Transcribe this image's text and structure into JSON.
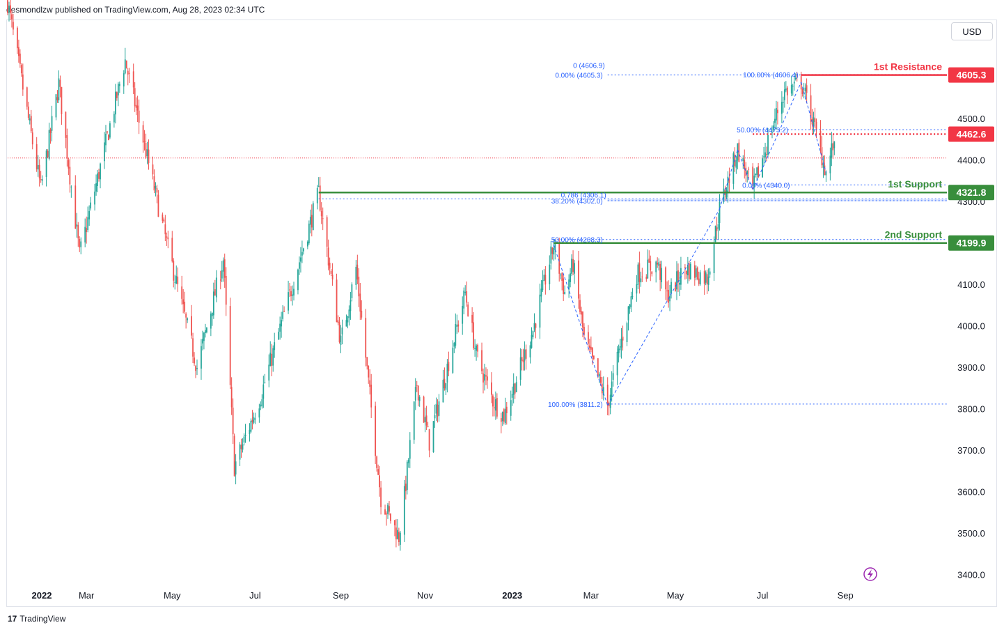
{
  "header": {
    "text": "desmondlzw published on TradingView.com, Aug 28, 2023 02:34 UTC"
  },
  "currency": "USD",
  "footer": {
    "brand": "TradingView"
  },
  "colors": {
    "bull": "#26a69a",
    "bear": "#ef5350",
    "support": "#388e3c",
    "resistance": "#f23645",
    "fib": "#2962ff"
  },
  "chart_data": {
    "type": "candlestick",
    "y_ticks": [
      3400,
      3500,
      3600,
      3700,
      3800,
      3900,
      4000,
      4100,
      4200,
      4300,
      4400,
      4500
    ],
    "y_tick_labels": [
      "3400.0",
      "3500.0",
      "3600.0",
      "3700.0",
      "3800.0",
      "3900.0",
      "4000.0",
      "4100.0",
      "4200.0",
      "4300.0",
      "4400.0",
      "4500.0"
    ],
    "x_tick_labels": [
      "2022",
      "Mar",
      "May",
      "Jul",
      "Sep",
      "Nov",
      "2023",
      "Mar",
      "May",
      "Jul",
      "Sep"
    ],
    "bold_x_ticks": [
      "2022",
      "2023"
    ],
    "price_path": [
      [
        "2022-01-03",
        4780
      ],
      [
        "2022-01-27",
        4330
      ],
      [
        "2022-02-09",
        4585
      ],
      [
        "2022-02-24",
        4170
      ],
      [
        "2022-03-29",
        4640
      ],
      [
        "2022-04-28",
        4200
      ],
      [
        "2022-05-20",
        3900
      ],
      [
        "2022-06-08",
        4160
      ],
      [
        "2022-06-16",
        3660
      ],
      [
        "2022-07-05",
        3830
      ],
      [
        "2022-08-16",
        4320
      ],
      [
        "2022-09-01",
        3960
      ],
      [
        "2022-09-12",
        4140
      ],
      [
        "2022-09-30",
        3585
      ],
      [
        "2022-10-13",
        3491
      ],
      [
        "2022-10-17",
        3590
      ],
      [
        "2022-10-26",
        3860
      ],
      [
        "2022-11-04",
        3720
      ],
      [
        "2022-11-30",
        4080
      ],
      [
        "2022-12-08",
        3930
      ],
      [
        "2022-12-20",
        3820
      ],
      [
        "2022-12-28",
        3783
      ],
      [
        "2023-01-18",
        3990
      ],
      [
        "2023-02-02",
        4195
      ],
      [
        "2023-02-10",
        4080
      ],
      [
        "2023-02-16",
        4150
      ],
      [
        "2023-02-24",
        3970
      ],
      [
        "2023-03-13",
        3808
      ],
      [
        "2023-03-22",
        3950
      ],
      [
        "2023-04-03",
        4125
      ],
      [
        "2023-04-18",
        4150
      ],
      [
        "2023-04-25",
        4070
      ],
      [
        "2023-05-08",
        4140
      ],
      [
        "2023-05-24",
        4115
      ],
      [
        "2023-06-02",
        4282
      ],
      [
        "2023-06-15",
        4425
      ],
      [
        "2023-06-26",
        4328
      ],
      [
        "2023-07-13",
        4510
      ],
      [
        "2023-07-19",
        4565
      ],
      [
        "2023-07-31",
        4588
      ],
      [
        "2023-08-08",
        4500
      ],
      [
        "2023-08-18",
        4370
      ],
      [
        "2023-08-23",
        4436
      ],
      [
        "2023-08-25",
        4405
      ]
    ],
    "current_price": 4405,
    "levels": [
      {
        "name": "1st Resistance",
        "value": 4605.3,
        "label": "4605.3",
        "kind": "resistance",
        "style": "solid"
      },
      {
        "name": "",
        "value": 4462.6,
        "label": "4462.6",
        "kind": "resistance",
        "style": "dotted"
      },
      {
        "name": "1st Support",
        "value": 4321.8,
        "label": "4321.8",
        "kind": "support",
        "style": "solid"
      },
      {
        "name": "2nd Support",
        "value": 4199.9,
        "label": "4199.9",
        "kind": "support",
        "style": "solid"
      }
    ],
    "fib_labels": [
      {
        "text": "0 (4606.9)",
        "value": 4606.9
      },
      {
        "text": "0.00% (4605.3)",
        "value": 4605.3
      },
      {
        "text": "100.00% (4606.4)",
        "value": 4606.4
      },
      {
        "text": "50.00% (4473.2)",
        "value": 4473.2
      },
      {
        "text": "0.00% (4340.0)",
        "value": 4340.0
      },
      {
        "text": "0.786 (4306.1)",
        "value": 4306.1
      },
      {
        "text": "38.20% (4302.0)",
        "value": 4302.0
      },
      {
        "text": "50.00% (4208.3)",
        "value": 4208.3
      },
      {
        "text": "100.00% (3811.2)",
        "value": 3811.2
      }
    ],
    "grid": false,
    "legend": "none"
  }
}
